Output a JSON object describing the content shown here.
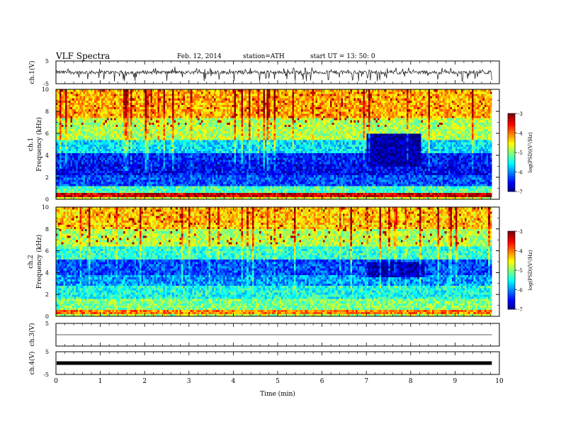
{
  "header": {
    "title": "VLF  Spectra",
    "date": "Feb. 12, 2014",
    "station": "station=ATH",
    "start": "start  UT  =   13: 50: 0"
  },
  "chart_data": {
    "type": "heatmap",
    "xlabel": "Time  (min)",
    "xlim": [
      0,
      10
    ],
    "x_ticks": [
      0,
      1,
      2,
      3,
      4,
      5,
      6,
      7,
      8,
      9,
      10
    ],
    "data_end_min": 9.83,
    "panels": [
      {
        "type": "line",
        "ylabel": "ch.1(V)",
        "ylim": [
          -5,
          5
        ],
        "y_ticks": [
          5,
          -5
        ],
        "signal": "noisy waveform centred near 0 V with frequent spikes reaching about -4 V",
        "baseline_v": 0
      },
      {
        "type": "heatmap",
        "ylabel_top": "ch.1",
        "ylabel": "Frequency  (kHz)",
        "ylim": [
          0,
          10
        ],
        "y_ticks": [
          0,
          2,
          4,
          6,
          8,
          10
        ],
        "color_min": -7,
        "color_max": -3,
        "colorbar_ticks": [
          -3,
          -4,
          -5,
          -6,
          -7
        ],
        "colorbar_label": "log(PSD)(V²/Hz)",
        "description": "high power (red) below 0.6 kHz, blue 1-4 kHz, green-yellow with red streaks above 5 kHz; reduced power band 7.0-8.25 min between 3 and 6 kHz",
        "bands": [
          {
            "f": [
              0,
              0.3
            ],
            "level": -4.6
          },
          {
            "f": [
              0.3,
              0.7
            ],
            "level": -3.3
          },
          {
            "f": [
              0.7,
              1.2
            ],
            "level": -5.2
          },
          {
            "f": [
              1.2,
              2.2
            ],
            "level": -6.2
          },
          {
            "f": [
              2.2,
              3.2
            ],
            "level": -6.5
          },
          {
            "f": [
              3.2,
              4.2
            ],
            "level": -6.4
          },
          {
            "f": [
              4.2,
              5.5
            ],
            "level": -5.6
          },
          {
            "f": [
              5.5,
              7.5
            ],
            "level": -4.8
          },
          {
            "f": [
              7.5,
              10
            ],
            "level": -4.2
          }
        ],
        "quiet_window": {
          "t": [
            7.0,
            8.25
          ],
          "f": [
            3.0,
            6.0
          ],
          "level": -6.9
        }
      },
      {
        "type": "heatmap",
        "ylabel_top": "ch.2",
        "ylabel": "Frequency  (kHz)",
        "ylim": [
          0,
          10
        ],
        "y_ticks": [
          0,
          2,
          4,
          6,
          8,
          10
        ],
        "color_min": -7,
        "color_max": -3,
        "colorbar_ticks": [
          -3,
          -4,
          -5,
          -6,
          -7
        ],
        "colorbar_label": "log(PSD)(V²/Hz)",
        "description": "green-yellow at low frequencies, blue 3-5 kHz, green-yellow with red streaks above 6 kHz; reduced power band 7.0-8.3 min between 3.5 and 5 kHz",
        "bands": [
          {
            "f": [
              0,
              0.3
            ],
            "level": -4.8
          },
          {
            "f": [
              0.3,
              0.6
            ],
            "level": -4.0
          },
          {
            "f": [
              0.6,
              1.5
            ],
            "level": -5.0
          },
          {
            "f": [
              1.5,
              2.8
            ],
            "level": -5.4
          },
          {
            "f": [
              2.8,
              3.8
            ],
            "level": -5.9
          },
          {
            "f": [
              3.8,
              5.2
            ],
            "level": -6.2
          },
          {
            "f": [
              5.2,
              6.5
            ],
            "level": -5.3
          },
          {
            "f": [
              6.5,
              8.0
            ],
            "level": -4.8
          },
          {
            "f": [
              8.0,
              10
            ],
            "level": -4.3
          }
        ],
        "quiet_window": {
          "t": [
            7.0,
            8.3
          ],
          "f": [
            3.5,
            5.0
          ],
          "level": -6.8
        }
      },
      {
        "type": "line",
        "ylabel": "ch.3(V)",
        "ylim": [
          -5,
          5
        ],
        "y_ticks": [
          5
        ],
        "signal": "flat line near 0 V",
        "baseline_v": 0
      },
      {
        "type": "line",
        "ylabel": "ch.4(V)",
        "ylim": [
          -5,
          5
        ],
        "y_ticks": [
          5,
          -5
        ],
        "signal": "thick flat band near 0 V",
        "baseline_v": 0
      }
    ]
  }
}
